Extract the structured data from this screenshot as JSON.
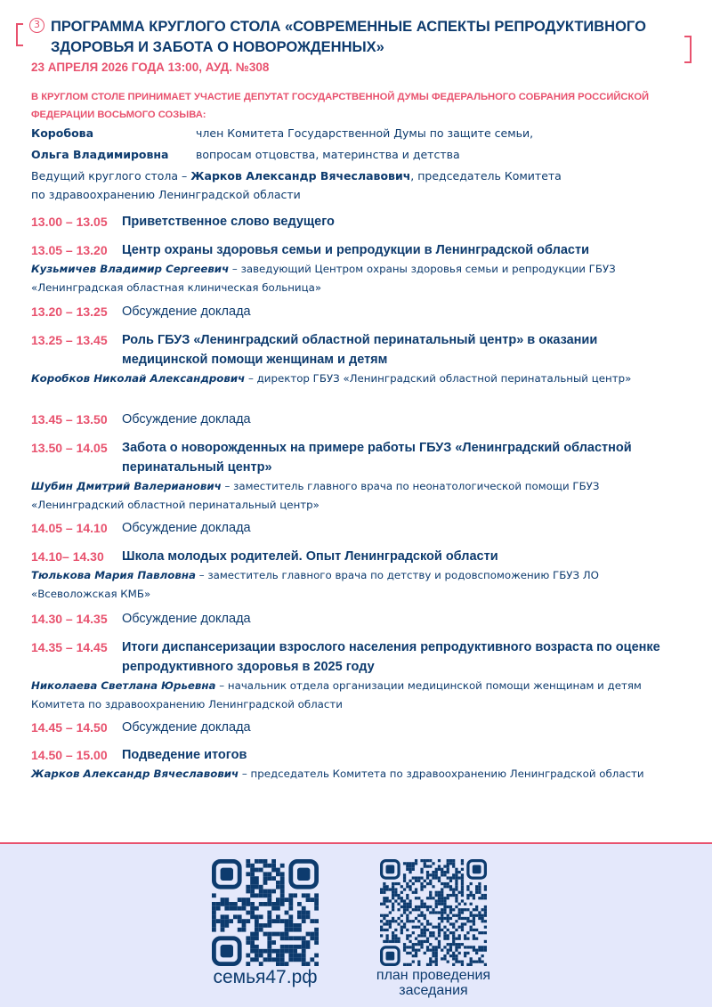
{
  "header": {
    "number": "3",
    "title": "Программа круглого стола «Современные аспекты репродуктивного здоровья и забота о новорожденных»",
    "date": "23 апреля 2026 года 13:00, ауд. №308"
  },
  "notice": "В КРУГЛОМ СТОЛЕ ПРИНИМАЕТ УЧАСТИЕ ДЕПУТАТ ГОСУДАРСТВЕННОЙ ДУМЫ ФЕДЕРАЛЬНОГО СОБРАНИЯ РОССИЙСКОЙ ФЕДЕРАЦИИ ВОСЬМОГО СОЗЫВА:",
  "deputy": {
    "name1": "Коробова",
    "name2": "Ольга Владимировна",
    "role1": "член Комитета Государственной Думы по защите семьи,",
    "role2": "вопросам отцовства, материнства и детства"
  },
  "host": {
    "prefix": "Ведущий круглого стола – ",
    "name": "Жарков Александр Вячеславович",
    "suffix": ", председатель Комитета",
    "line2": "по здравоохранению Ленинградской области"
  },
  "items": [
    {
      "time": "13.00 – 13.05",
      "title": "Приветственное слово ведущего"
    },
    {
      "time": "13.05 – 13.20",
      "title": "Центр охраны здоровья семьи и репродукции в Ленинградской области",
      "speaker": "Кузьмичев Владимир Сергеевич",
      "role": " – заведующий Центром охраны здоровья семьи и репродукции ГБУЗ «Ленинградская областная клиническая больница»"
    },
    {
      "time": "13.20 – 13.25",
      "title": "Обсуждение доклада"
    },
    {
      "time": "13.25 – 13.45",
      "title": "Роль ГБУЗ «Ленинградский областной перинатальный центр» в оказании медицинской помощи женщинам и детям",
      "speaker": "Коробков Николай Александрович",
      "role": " – директор ГБУЗ «Ленинградский областной перинатальный центр»"
    },
    {
      "time": "13.45 – 13.50",
      "title": "Обсуждение доклада"
    },
    {
      "time": "13.50 – 14.05",
      "title": "Забота о новорожденных на примере работы ГБУЗ «Ленинградский областной перинатальный центр»",
      "speaker": "Шубин Дмитрий Валерианович",
      "role": " – заместитель главного врача по неонатологической помощи ГБУЗ «Ленинградский областной перинатальный центр»"
    },
    {
      "time": "14.05 – 14.10",
      "title": "Обсуждение доклада"
    },
    {
      "time": "14.10– 14.30",
      "title": "Школа молодых родителей. Опыт Ленинградской области",
      "speaker": "Тюлькова Мария Павловна",
      "role": " – заместитель главного врача по детству и родовспоможению ГБУЗ ЛО «Всеволожская КМБ»"
    },
    {
      "time": "14.30 – 14.35",
      "title": "Обсуждение доклада"
    },
    {
      "time": "14.35 – 14.45",
      "title": "Итоги диспансеризации взрослого населения репродуктивного возраста по оценке репродуктивного здоровья в 2025 году",
      "speaker": "Николаева Светлана Юрьевна",
      "role": " – начальник отдела организации медицинской помощи женщинам и детям Комитета по здравоохранению Ленинградской области"
    },
    {
      "time": "14.45 – 14.50",
      "title": "Обсуждение доклада"
    },
    {
      "time": "14.50 – 15.00",
      "title": "Подведение итогов",
      "speaker": "Жарков Александр Вячеславович",
      "role": " – председатель Комитета по здравоохранению Ленинградской области"
    }
  ],
  "footer": {
    "qr1_caption": "семья47.рф",
    "qr2_caption": "план проведения заседания",
    "accent": "#e8526e",
    "navy": "#0d3b6e"
  }
}
